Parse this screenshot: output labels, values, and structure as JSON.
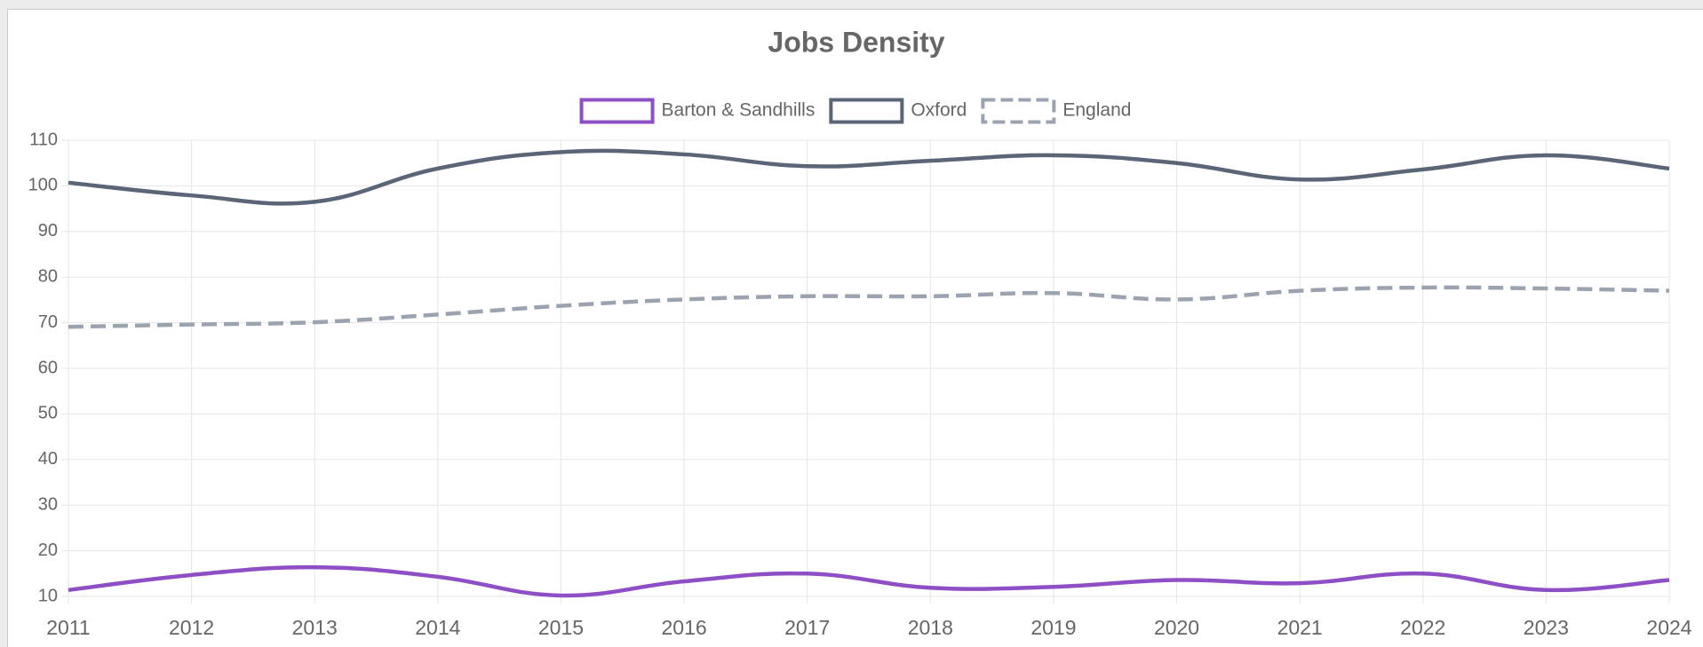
{
  "chart_data": {
    "type": "line",
    "title": "Jobs Density",
    "categories": [
      "2011",
      "2012",
      "2013",
      "2014",
      "2015",
      "2016",
      "2017",
      "2018",
      "2019",
      "2020",
      "2021",
      "2022",
      "2023",
      "2024"
    ],
    "series": [
      {
        "name": "Barton & Sandhills",
        "color": "#8e4ec6",
        "dashed": false,
        "values": [
          11.4,
          14.7,
          16.4,
          14.3,
          10.2,
          13.3,
          15,
          11.9,
          12.1,
          13.6,
          12.9,
          15,
          11.4,
          13.6
        ]
      },
      {
        "name": "Oxford",
        "color": "#5a6577",
        "dashed": false,
        "values": [
          100.7,
          97.9,
          96.5,
          103.8,
          107.4,
          106.9,
          104.3,
          105.5,
          106.7,
          105,
          101.4,
          103.6,
          106.7,
          103.8
        ]
      },
      {
        "name": "England",
        "color": "#9ca3b0",
        "dashed": true,
        "values": [
          69.1,
          69.6,
          70.1,
          71.8,
          73.7,
          75.1,
          75.8,
          75.8,
          76.5,
          75.1,
          77,
          77.7,
          77.5,
          77
        ]
      }
    ],
    "ylim": [
      10,
      110
    ],
    "yticks": [
      10,
      20,
      30,
      40,
      50,
      60,
      70,
      80,
      90,
      100,
      110
    ],
    "grid": true,
    "legend": "top"
  }
}
